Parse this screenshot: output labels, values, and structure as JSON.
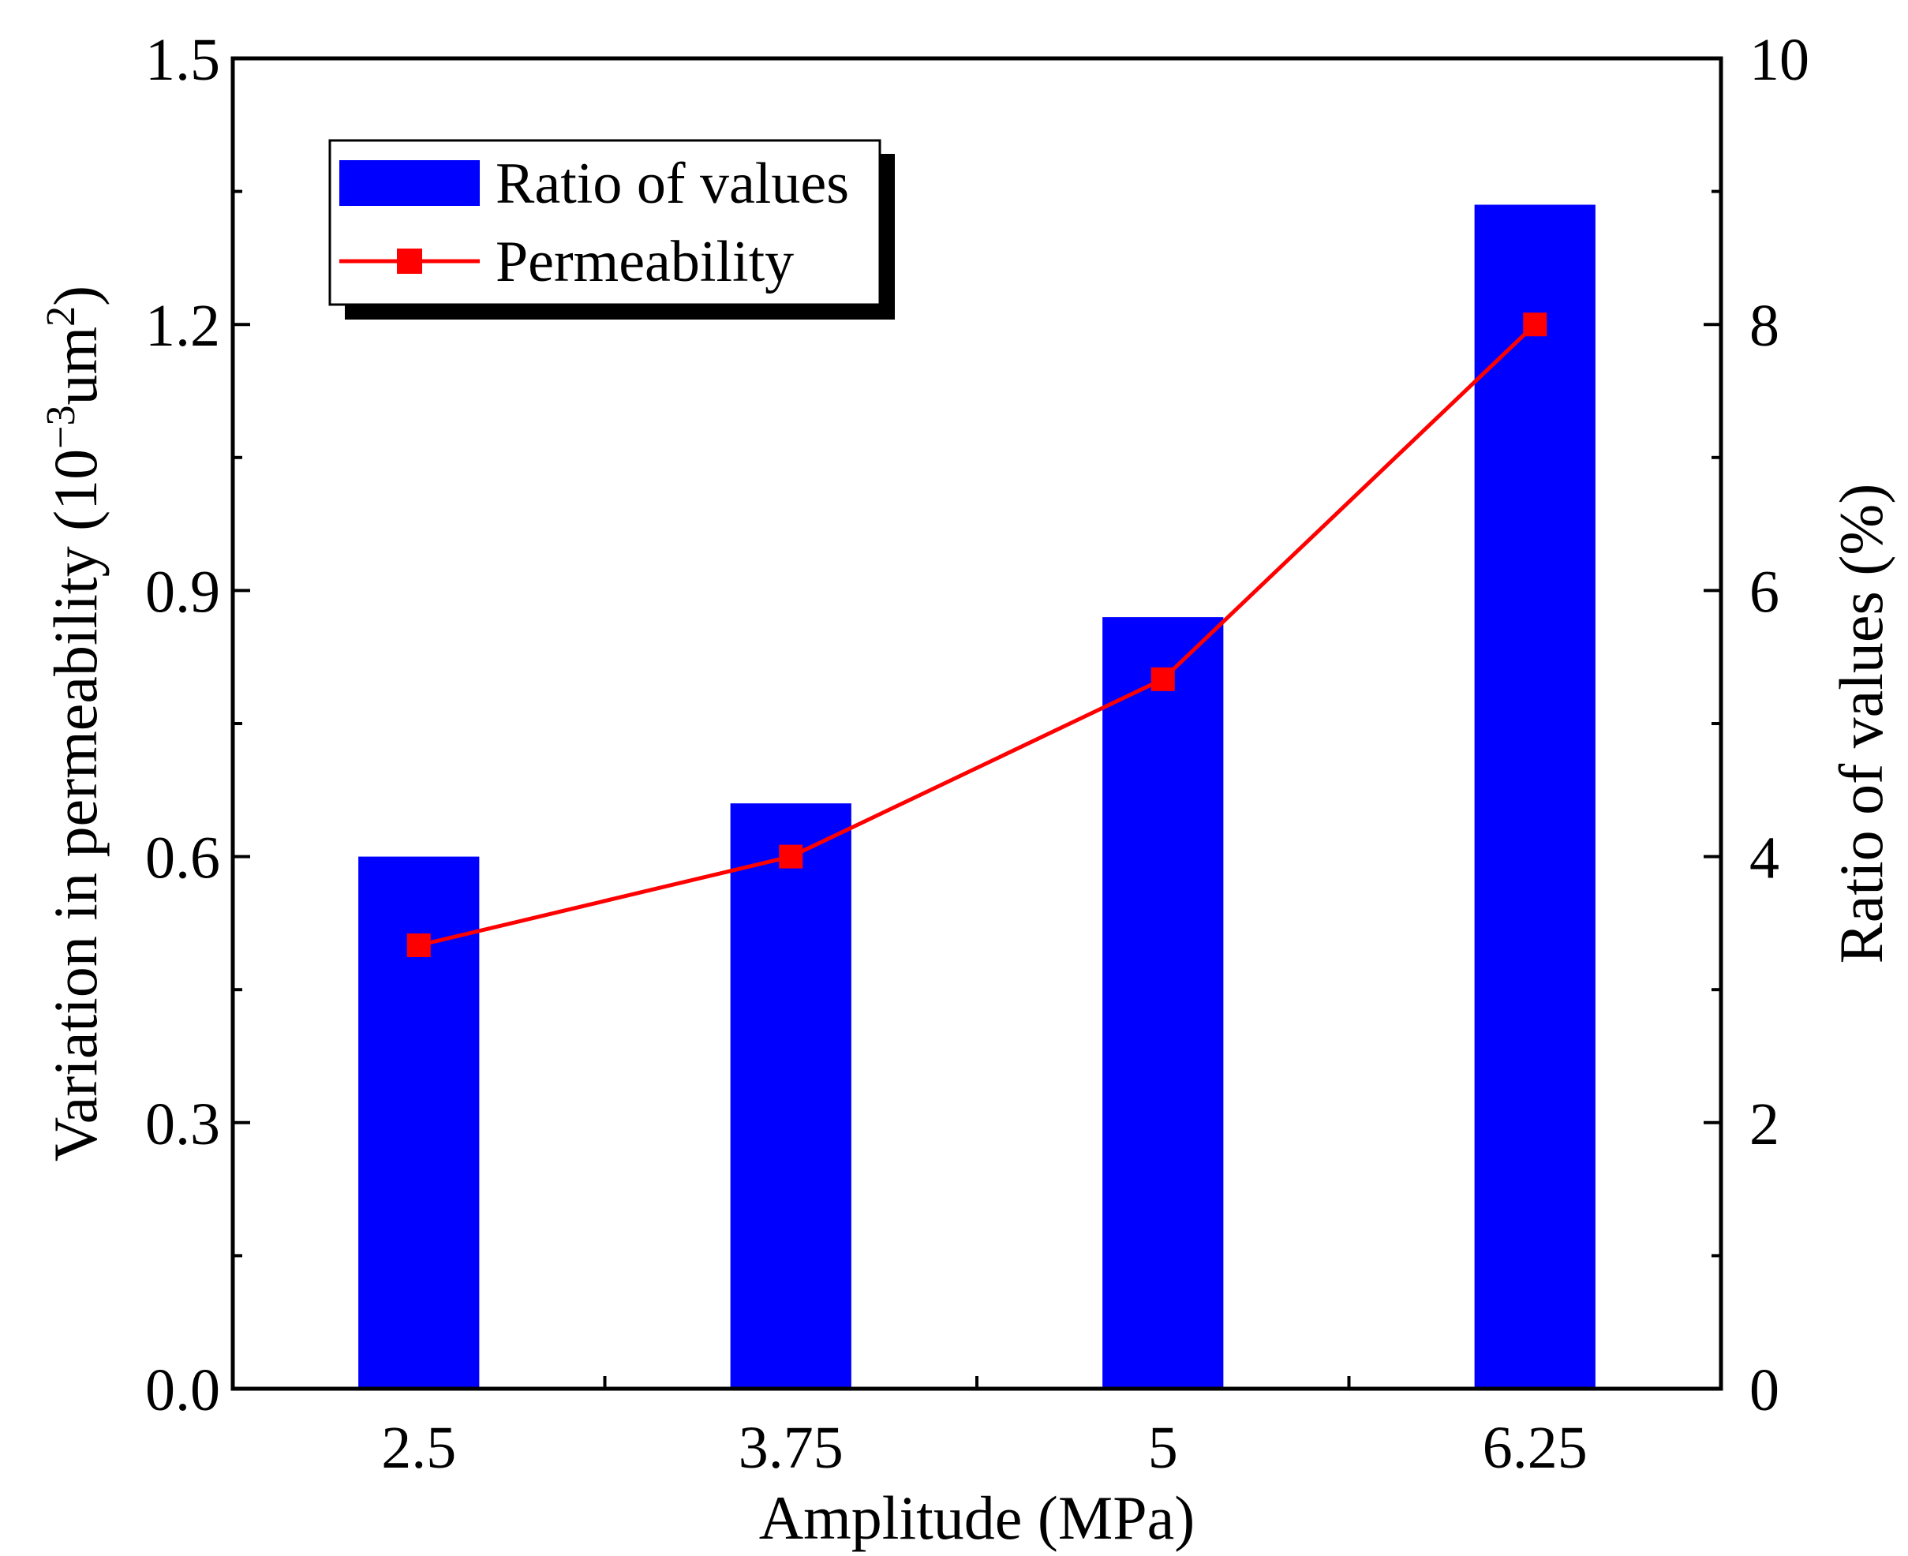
{
  "chart_data": {
    "type": "bar+line",
    "categories": [
      "2.5",
      "3.75",
      "5",
      "6.25"
    ],
    "xlabel": "Amplitude (MPa)",
    "ylabel_left": {
      "prefix": "Variation in permeability (10",
      "sup1": "−3",
      "mid": "um",
      "sup2": "2",
      "suffix": ")"
    },
    "ylabel_right": "Ratio of values (%)",
    "ylim_left": [
      0,
      1.5
    ],
    "ylim_right": [
      0,
      10
    ],
    "yticks_left": [
      "0.0",
      "0.3",
      "0.6",
      "0.9",
      "1.2",
      "1.5"
    ],
    "yticks_right": [
      "0",
      "2",
      "4",
      "6",
      "8",
      "10"
    ],
    "series": [
      {
        "name": "Ratio of values",
        "kind": "bar",
        "axis": "right",
        "color": "#0000ff",
        "values": [
          4.0,
          4.4,
          5.8,
          8.9
        ]
      },
      {
        "name": "Permeability",
        "kind": "line",
        "axis": "left",
        "color": "#ff0000",
        "marker": "square",
        "values": [
          0.5,
          0.6,
          0.8,
          1.2
        ]
      }
    ],
    "legend": {
      "position": "top-left",
      "shadow": true
    }
  }
}
